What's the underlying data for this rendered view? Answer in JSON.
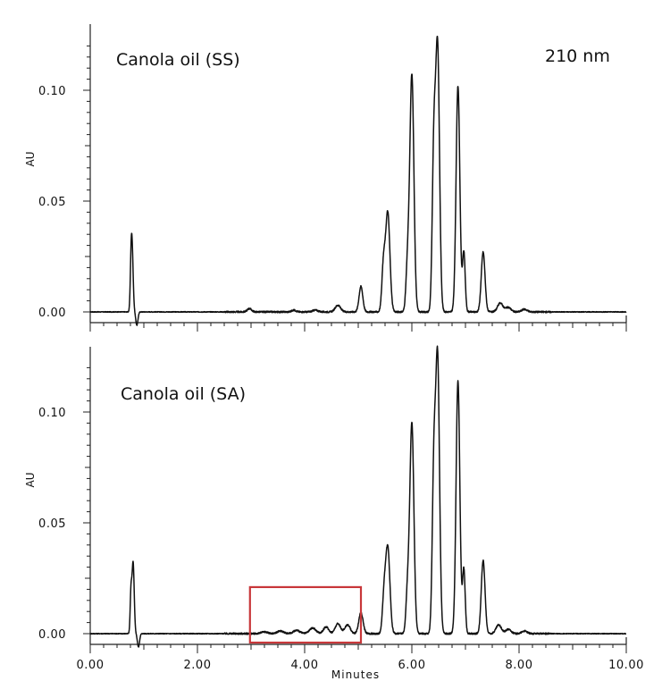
{
  "chart_data": [
    {
      "type": "line",
      "title": "Canola oil (SS)",
      "annotation": "210 nm",
      "ylabel": "AU",
      "xlim": [
        0,
        10
      ],
      "ylim": [
        -0.005,
        0.13
      ],
      "y_ticks": [
        "0.00",
        "0.05",
        "0.10"
      ],
      "peaks": [
        {
          "x": 0.78,
          "height": 0.029,
          "width": 0.02
        },
        {
          "x": 0.76,
          "height": 0.012,
          "width": 0.015
        },
        {
          "x": 0.87,
          "height": -0.006,
          "width": 0.02
        },
        {
          "x": 2.97,
          "height": 0.0015,
          "width": 0.04
        },
        {
          "x": 3.8,
          "height": 0.0008,
          "width": 0.04
        },
        {
          "x": 4.2,
          "height": 0.0008,
          "width": 0.05
        },
        {
          "x": 4.62,
          "height": 0.003,
          "width": 0.05
        },
        {
          "x": 5.05,
          "height": 0.0115,
          "width": 0.035
        },
        {
          "x": 5.55,
          "height": 0.045,
          "width": 0.04
        },
        {
          "x": 5.47,
          "height": 0.02,
          "width": 0.03
        },
        {
          "x": 6.0,
          "height": 0.107,
          "width": 0.038
        },
        {
          "x": 5.92,
          "height": 0.02,
          "width": 0.03
        },
        {
          "x": 6.48,
          "height": 0.119,
          "width": 0.036
        },
        {
          "x": 6.41,
          "height": 0.07,
          "width": 0.03
        },
        {
          "x": 6.86,
          "height": 0.102,
          "width": 0.035
        },
        {
          "x": 6.97,
          "height": 0.027,
          "width": 0.025
        },
        {
          "x": 7.33,
          "height": 0.027,
          "width": 0.035
        },
        {
          "x": 7.65,
          "height": 0.004,
          "width": 0.05
        },
        {
          "x": 7.8,
          "height": 0.002,
          "width": 0.05
        },
        {
          "x": 8.1,
          "height": 0.0012,
          "width": 0.05
        }
      ]
    },
    {
      "type": "line",
      "title": "Canola oil (SA)",
      "ylabel": "AU",
      "xlabel": "Minutes",
      "xlim": [
        0,
        10
      ],
      "ylim": [
        -0.005,
        0.13
      ],
      "x_ticks": [
        "0.00",
        "2.00",
        "4.00",
        "6.00",
        "8.00",
        "10.00"
      ],
      "y_ticks": [
        "0.00",
        "0.05",
        "0.10"
      ],
      "highlight_box": {
        "x": [
          2.98,
          5.05
        ],
        "y": [
          0.0,
          0.021
        ],
        "color": "#c8373a"
      },
      "peaks": [
        {
          "x": 0.8,
          "height": 0.032,
          "width": 0.02
        },
        {
          "x": 0.76,
          "height": 0.018,
          "width": 0.015
        },
        {
          "x": 0.9,
          "height": -0.006,
          "width": 0.02
        },
        {
          "x": 3.25,
          "height": 0.0008,
          "width": 0.06
        },
        {
          "x": 3.55,
          "height": 0.0012,
          "width": 0.06
        },
        {
          "x": 3.85,
          "height": 0.0015,
          "width": 0.06
        },
        {
          "x": 4.15,
          "height": 0.0025,
          "width": 0.06
        },
        {
          "x": 4.4,
          "height": 0.003,
          "width": 0.05
        },
        {
          "x": 4.62,
          "height": 0.0045,
          "width": 0.05
        },
        {
          "x": 4.8,
          "height": 0.004,
          "width": 0.05
        },
        {
          "x": 5.05,
          "height": 0.0095,
          "width": 0.04
        },
        {
          "x": 5.55,
          "height": 0.039,
          "width": 0.04
        },
        {
          "x": 5.48,
          "height": 0.015,
          "width": 0.03
        },
        {
          "x": 6.0,
          "height": 0.095,
          "width": 0.038
        },
        {
          "x": 5.92,
          "height": 0.018,
          "width": 0.03
        },
        {
          "x": 6.48,
          "height": 0.124,
          "width": 0.036
        },
        {
          "x": 6.41,
          "height": 0.07,
          "width": 0.03
        },
        {
          "x": 6.86,
          "height": 0.114,
          "width": 0.035
        },
        {
          "x": 6.97,
          "height": 0.029,
          "width": 0.025
        },
        {
          "x": 7.33,
          "height": 0.033,
          "width": 0.035
        },
        {
          "x": 7.62,
          "height": 0.004,
          "width": 0.05
        },
        {
          "x": 7.8,
          "height": 0.002,
          "width": 0.05
        },
        {
          "x": 8.1,
          "height": 0.0012,
          "width": 0.05
        }
      ]
    }
  ]
}
